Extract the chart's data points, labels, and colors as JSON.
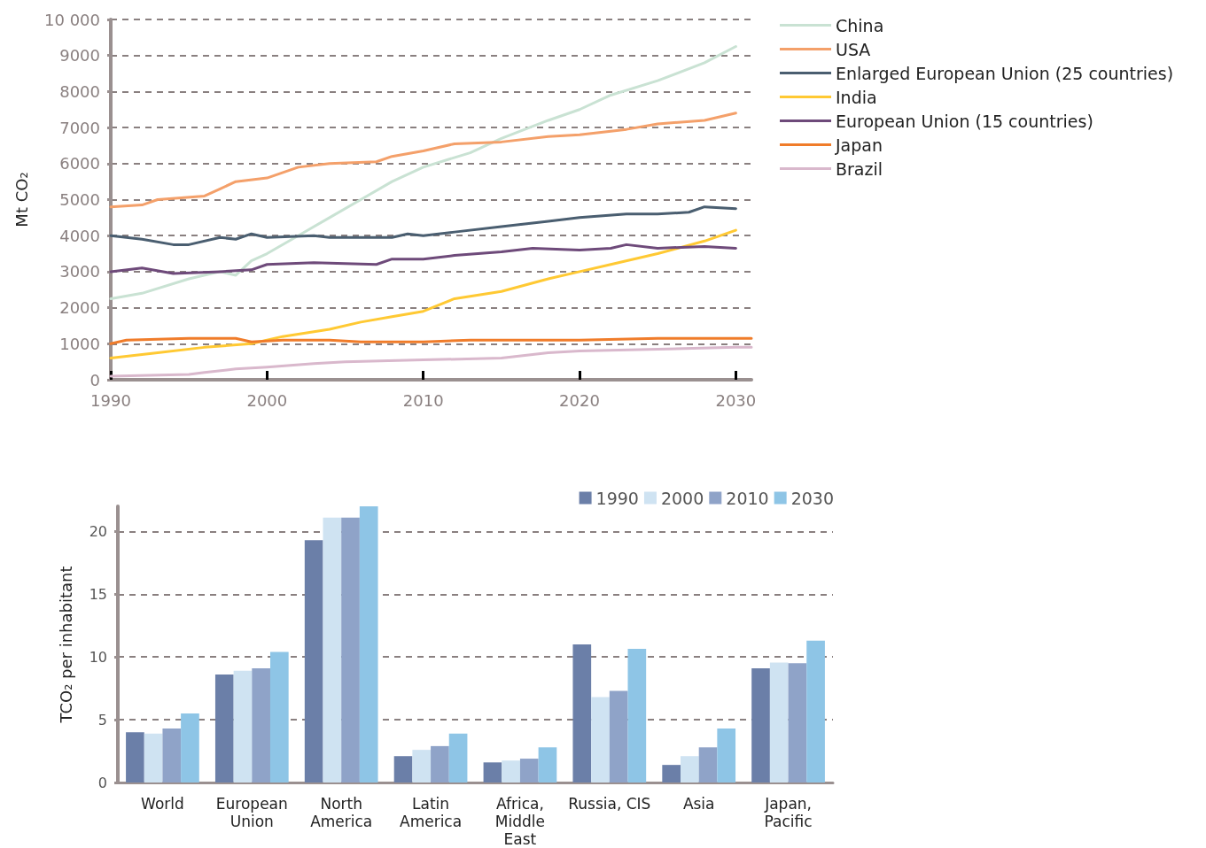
{
  "chart_data": [
    {
      "type": "line",
      "ylabel": "Mt CO₂",
      "xlim": [
        1990,
        2031
      ],
      "xticks": [
        1990,
        2000,
        2010,
        2020,
        2030
      ],
      "ylim": [
        0,
        10000
      ],
      "yticks": [
        0,
        1000,
        2000,
        3000,
        4000,
        5000,
        6000,
        7000,
        8000,
        9000,
        {
          "value": 10000,
          "label": "10 000"
        }
      ],
      "grid": "y",
      "legend": "right",
      "marker": "none",
      "line_style": "solid",
      "series": [
        {
          "name": "China",
          "color": "#c9e2d3",
          "x": [
            1990,
            1992,
            1995,
            1997,
            1998,
            1999,
            2000,
            2002,
            2004,
            2006,
            2008,
            2010,
            2013,
            2015,
            2018,
            2020,
            2022,
            2025,
            2028,
            2030
          ],
          "values": [
            2250,
            2400,
            2800,
            3000,
            2900,
            3300,
            3500,
            4000,
            4500,
            5000,
            5500,
            5900,
            6300,
            6700,
            7200,
            7500,
            7900,
            8300,
            8800,
            9250
          ]
        },
        {
          "name": "USA",
          "color": "#f4a06a",
          "x": [
            1990,
            1992,
            1993,
            1996,
            1997,
            1998,
            2000,
            2002,
            2004,
            2007,
            2008,
            2010,
            2012,
            2015,
            2018,
            2020,
            2023,
            2025,
            2028,
            2030
          ],
          "values": [
            4800,
            4850,
            5000,
            5100,
            5300,
            5500,
            5600,
            5900,
            6000,
            6050,
            6200,
            6350,
            6550,
            6600,
            6750,
            6800,
            6950,
            7100,
            7200,
            7400
          ]
        },
        {
          "name": "Enlarged European Union (25 countries)",
          "color": "#4a5e70",
          "x": [
            1990,
            1992,
            1994,
            1995,
            1997,
            1998,
            1999,
            2000,
            2003,
            2004,
            2008,
            2009,
            2010,
            2012,
            2015,
            2018,
            2020,
            2023,
            2025,
            2027,
            2028,
            2030
          ],
          "values": [
            4000,
            3900,
            3750,
            3750,
            3950,
            3900,
            4050,
            3950,
            4000,
            3950,
            3950,
            4050,
            4000,
            4100,
            4250,
            4400,
            4500,
            4600,
            4600,
            4650,
            4800,
            4750
          ]
        },
        {
          "name": "India",
          "color": "#ffc933",
          "x": [
            1990,
            1993,
            1996,
            1999,
            2001,
            2004,
            2006,
            2008,
            2010,
            2012,
            2015,
            2018,
            2020,
            2022,
            2025,
            2028,
            2030
          ],
          "values": [
            600,
            750,
            900,
            1000,
            1200,
            1400,
            1600,
            1750,
            1900,
            2250,
            2450,
            2800,
            3000,
            3200,
            3500,
            3850,
            4150
          ]
        },
        {
          "name": "European Union (15 countries)",
          "color": "#6e4a7a",
          "x": [
            1990,
            1992,
            1994,
            1997,
            1999,
            2000,
            2003,
            2007,
            2008,
            2010,
            2012,
            2015,
            2017,
            2020,
            2022,
            2023,
            2025,
            2028,
            2030
          ],
          "values": [
            3000,
            3100,
            2950,
            3000,
            3050,
            3200,
            3250,
            3200,
            3350,
            3350,
            3450,
            3550,
            3650,
            3600,
            3650,
            3750,
            3650,
            3700,
            3650
          ]
        },
        {
          "name": "Japan",
          "color": "#f07c2a",
          "x": [
            1990,
            1991,
            1995,
            1998,
            1999,
            2001,
            2004,
            2006,
            2010,
            2013,
            2020,
            2025,
            2031
          ],
          "values": [
            1000,
            1100,
            1150,
            1150,
            1050,
            1100,
            1100,
            1050,
            1050,
            1100,
            1100,
            1150,
            1150
          ]
        },
        {
          "name": "Brazil",
          "color": "#d9b8cc",
          "x": [
            1990,
            1995,
            1996,
            1998,
            2000,
            2003,
            2005,
            2010,
            2015,
            2018,
            2020,
            2025,
            2030,
            2031
          ],
          "values": [
            100,
            150,
            200,
            300,
            350,
            450,
            500,
            550,
            600,
            750,
            800,
            850,
            900,
            900
          ]
        }
      ]
    },
    {
      "type": "bar",
      "ylabel": "TCO₂ per inhabitant",
      "categories": [
        "World",
        "European\nUnion",
        "North\nAmerica",
        "Latin\nAmerica",
        "Africa,\nMiddle\nEast",
        "Russia, CIS",
        "Asia",
        "Japan,\nPacific"
      ],
      "ylim": [
        0,
        22
      ],
      "yticks": [
        0,
        5,
        10,
        15,
        20
      ],
      "grid": "y",
      "legend": "top right",
      "series": [
        {
          "name": "1990",
          "color": "#6b7fa8",
          "values": [
            4.0,
            8.6,
            19.3,
            2.1,
            1.6,
            11.0,
            1.4,
            9.1
          ]
        },
        {
          "name": "2000",
          "color": "#cfe3f2",
          "values": [
            3.9,
            8.9,
            21.1,
            2.6,
            1.75,
            6.8,
            2.1,
            9.55
          ]
        },
        {
          "name": "2010",
          "color": "#8fa3c8",
          "values": [
            4.3,
            9.1,
            21.1,
            2.9,
            1.9,
            7.3,
            2.8,
            9.5
          ]
        },
        {
          "name": "2030",
          "color": "#8ec5e6",
          "values": [
            5.5,
            10.4,
            22.0,
            3.9,
            2.8,
            10.65,
            4.3,
            11.3
          ]
        }
      ]
    }
  ]
}
